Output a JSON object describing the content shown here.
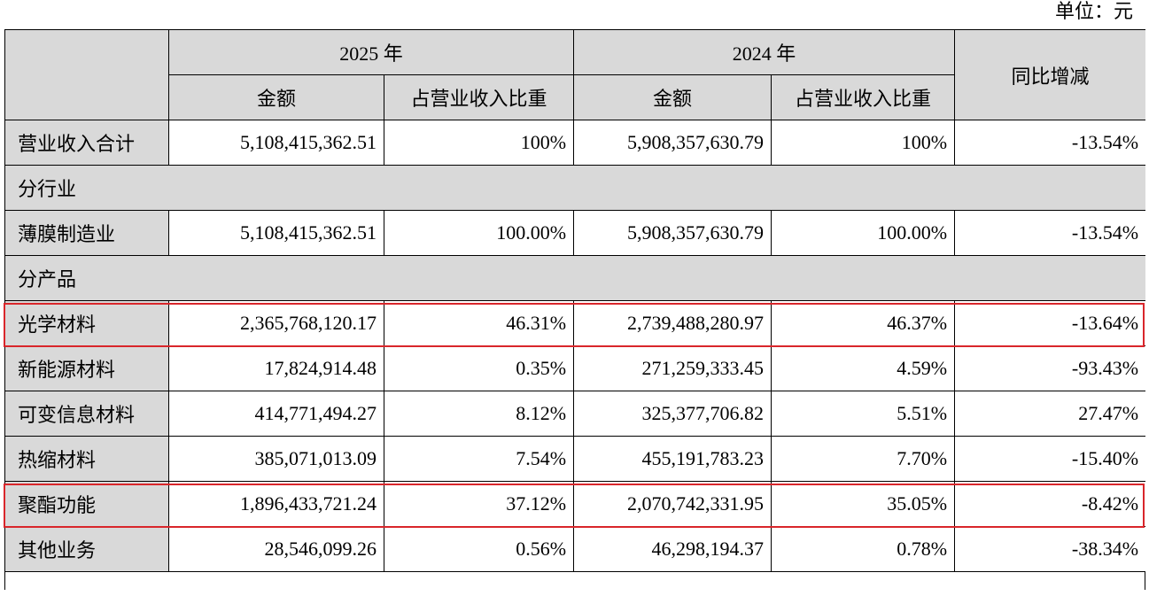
{
  "unit": "单位：元",
  "table": {
    "header": {
      "year_a": "2025 年",
      "year_b": "2024 年",
      "change": "同比增减",
      "sub": [
        "金额",
        "占营业收入比重",
        "金额",
        "占营业收入比重"
      ]
    },
    "rows": [
      [
        "营业收入合计",
        "5,108,415,362.51",
        "100%",
        "5,908,357,630.79",
        "100%",
        "-13.54%"
      ],
      [
        "分行业"
      ],
      [
        "薄膜制造业",
        "5,108,415,362.51",
        "100.00%",
        "5,908,357,630.79",
        "100.00%",
        "-13.54%"
      ],
      [
        "分产品"
      ],
      [
        "光学材料",
        "2,365,768,120.17",
        "46.31%",
        "2,739,488,280.97",
        "46.37%",
        "-13.64%"
      ],
      [
        "新能源材料",
        "17,824,914.48",
        "0.35%",
        "271,259,333.45",
        "4.59%",
        "-93.43%"
      ],
      [
        "可变信息材料",
        "414,771,494.27",
        "8.12%",
        "325,377,706.82",
        "5.51%",
        "27.47%"
      ],
      [
        "热缩材料",
        "385,071,013.09",
        "7.54%",
        "455,191,783.23",
        "7.70%",
        "-15.40%"
      ],
      [
        "聚酯功能",
        "1,896,433,721.24",
        "37.12%",
        "2,070,742,331.95",
        "35.05%",
        "-8.42%"
      ],
      [
        "其他业务",
        "28,546,099.26",
        "0.56%",
        "46,298,194.37",
        "0.78%",
        "-38.34%"
      ]
    ]
  }
}
